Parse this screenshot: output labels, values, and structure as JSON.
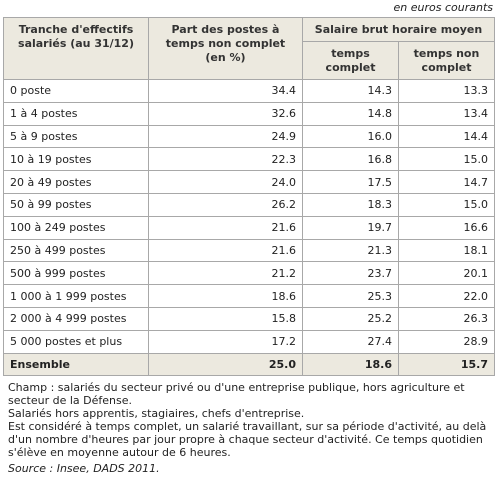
{
  "unit_note": "en euros courants",
  "table": {
    "headers": {
      "col1": "Tranche d'effectifs salariés (au 31/12)",
      "col2": "Part des postes à temps non complet (en %)",
      "group": "Salaire brut horaire moyen",
      "col3": "temps complet",
      "col4": "temps non complet"
    },
    "rows": [
      [
        "0 poste",
        "34.4",
        "14.3",
        "13.3"
      ],
      [
        "1 à 4 postes",
        "32.6",
        "14.8",
        "13.4"
      ],
      [
        "5 à 9 postes",
        "24.9",
        "16.0",
        "14.4"
      ],
      [
        "10 à 19 postes",
        "22.3",
        "16.8",
        "15.0"
      ],
      [
        "20 à 49 postes",
        "24.0",
        "17.5",
        "14.7"
      ],
      [
        "50 à 99 postes",
        "26.2",
        "18.3",
        "15.0"
      ],
      [
        "100 à 249 postes",
        "21.6",
        "19.7",
        "16.6"
      ],
      [
        "250 à 499 postes",
        "21.6",
        "21.3",
        "18.1"
      ],
      [
        "500 à 999 postes",
        "21.2",
        "23.7",
        "20.1"
      ],
      [
        "1 000 à 1 999 postes",
        "18.6",
        "25.3",
        "22.0"
      ],
      [
        "2 000 à 4 999 postes",
        "15.8",
        "25.2",
        "26.3"
      ],
      [
        "5 000 postes et plus",
        "17.2",
        "27.4",
        "28.9"
      ]
    ],
    "total": [
      "Ensemble",
      "25.0",
      "18.6",
      "15.7"
    ]
  },
  "notes": [
    "Champ : salariés du secteur privé ou d'une entreprise publique, hors agriculture et secteur de la Défense.",
    "Salariés hors apprentis, stagiaires, chefs d'entreprise.",
    "Est considéré à temps complet, un salarié travaillant, sur sa période d'activité, au delà d'un nombre d'heures par jour propre à chaque secteur d'activité. Ce temps quotidien s'élève en moyenne autour de 6 heures."
  ],
  "source": "Source : Insee, DADS 2011."
}
